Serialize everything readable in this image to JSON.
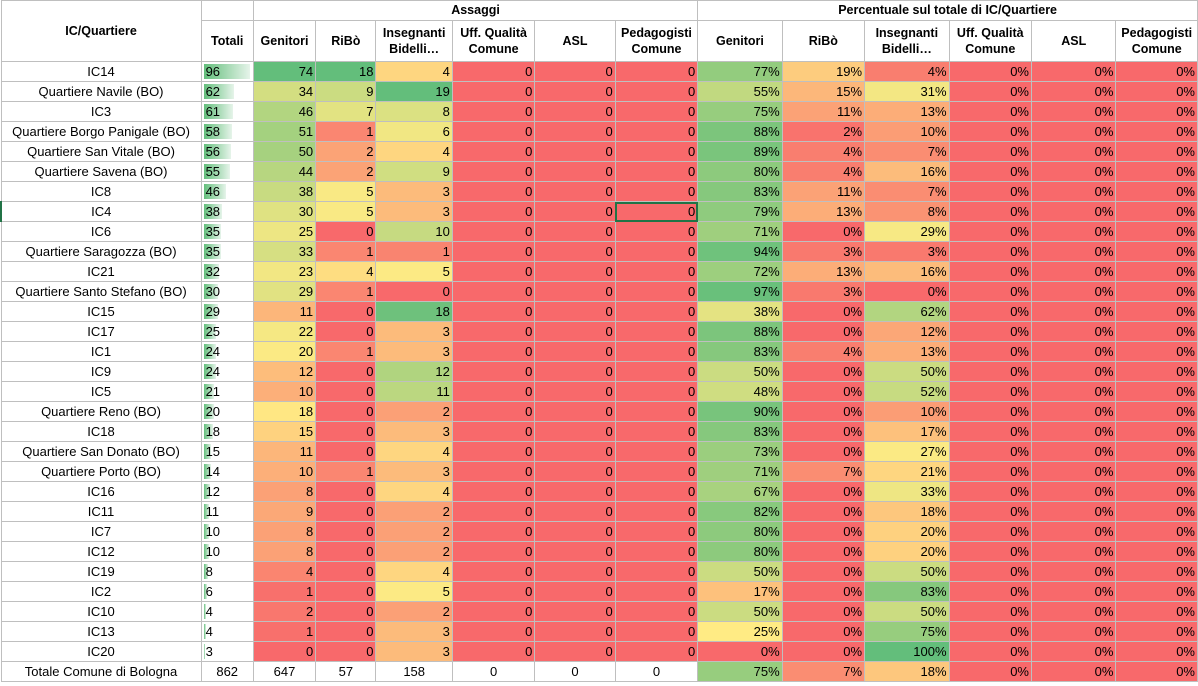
{
  "headers": {
    "col_name": "IC/Quartiere",
    "group_assaggi": "Assaggi",
    "group_percent": "Percentuale sul totale di IC/Quartiere",
    "totali": "Totali",
    "cols": [
      "Genitori",
      "RiBò",
      "Insegnanti Bidelli…",
      "Uff. Qualità Comune",
      "ASL",
      "Pedagogisti Comune"
    ]
  },
  "rows": [
    {
      "name": "IC14",
      "tot": 96,
      "a": [
        "74",
        "18",
        "4",
        "0",
        "0",
        "0"
      ],
      "p": [
        "77%",
        "19%",
        "4%",
        "0%",
        "0%",
        "0%"
      ]
    },
    {
      "name": "Quartiere Navile (BO)",
      "tot": 62,
      "a": [
        "34",
        "9",
        "19",
        "0",
        "0",
        "0"
      ],
      "p": [
        "55%",
        "15%",
        "31%",
        "0%",
        "0%",
        "0%"
      ]
    },
    {
      "name": "IC3",
      "tot": 61,
      "a": [
        "46",
        "7",
        "8",
        "0",
        "0",
        "0"
      ],
      "p": [
        "75%",
        "11%",
        "13%",
        "0%",
        "0%",
        "0%"
      ]
    },
    {
      "name": "Quartiere Borgo Panigale (BO)",
      "tot": 58,
      "a": [
        "51",
        "1",
        "6",
        "0",
        "0",
        "0"
      ],
      "p": [
        "88%",
        "2%",
        "10%",
        "0%",
        "0%",
        "0%"
      ]
    },
    {
      "name": "Quartiere San Vitale (BO)",
      "tot": 56,
      "a": [
        "50",
        "2",
        "4",
        "0",
        "0",
        "0"
      ],
      "p": [
        "89%",
        "4%",
        "7%",
        "0%",
        "0%",
        "0%"
      ]
    },
    {
      "name": "Quartiere Savena (BO)",
      "tot": 55,
      "a": [
        "44",
        "2",
        "9",
        "0",
        "0",
        "0"
      ],
      "p": [
        "80%",
        "4%",
        "16%",
        "0%",
        "0%",
        "0%"
      ]
    },
    {
      "name": "IC8",
      "tot": 46,
      "a": [
        "38",
        "5",
        "3",
        "0",
        "0",
        "0"
      ],
      "p": [
        "83%",
        "11%",
        "7%",
        "0%",
        "0%",
        "0%"
      ]
    },
    {
      "name": "IC4",
      "tot": 38,
      "a": [
        "30",
        "5",
        "3",
        "0",
        "0",
        "0"
      ],
      "p": [
        "79%",
        "13%",
        "8%",
        "0%",
        "0%",
        "0%"
      ]
    },
    {
      "name": "IC6",
      "tot": 35,
      "a": [
        "25",
        "0",
        "10",
        "0",
        "0",
        "0"
      ],
      "p": [
        "71%",
        "0%",
        "29%",
        "0%",
        "0%",
        "0%"
      ]
    },
    {
      "name": "Quartiere Saragozza (BO)",
      "tot": 35,
      "a": [
        "33",
        "1",
        "1",
        "0",
        "0",
        "0"
      ],
      "p": [
        "94%",
        "3%",
        "3%",
        "0%",
        "0%",
        "0%"
      ]
    },
    {
      "name": "IC21",
      "tot": 32,
      "a": [
        "23",
        "4",
        "5",
        "0",
        "0",
        "0"
      ],
      "p": [
        "72%",
        "13%",
        "16%",
        "0%",
        "0%",
        "0%"
      ]
    },
    {
      "name": "Quartiere Santo Stefano (BO)",
      "tot": 30,
      "a": [
        "29",
        "1",
        "0",
        "0",
        "0",
        "0"
      ],
      "p": [
        "97%",
        "3%",
        "0%",
        "0%",
        "0%",
        "0%"
      ]
    },
    {
      "name": "IC15",
      "tot": 29,
      "a": [
        "11",
        "0",
        "18",
        "0",
        "0",
        "0"
      ],
      "p": [
        "38%",
        "0%",
        "62%",
        "0%",
        "0%",
        "0%"
      ]
    },
    {
      "name": "IC17",
      "tot": 25,
      "a": [
        "22",
        "0",
        "3",
        "0",
        "0",
        "0"
      ],
      "p": [
        "88%",
        "0%",
        "12%",
        "0%",
        "0%",
        "0%"
      ]
    },
    {
      "name": "IC1",
      "tot": 24,
      "a": [
        "20",
        "1",
        "3",
        "0",
        "0",
        "0"
      ],
      "p": [
        "83%",
        "4%",
        "13%",
        "0%",
        "0%",
        "0%"
      ]
    },
    {
      "name": "IC9",
      "tot": 24,
      "a": [
        "12",
        "0",
        "12",
        "0",
        "0",
        "0"
      ],
      "p": [
        "50%",
        "0%",
        "50%",
        "0%",
        "0%",
        "0%"
      ]
    },
    {
      "name": "IC5",
      "tot": 21,
      "a": [
        "10",
        "0",
        "11",
        "0",
        "0",
        "0"
      ],
      "p": [
        "48%",
        "0%",
        "52%",
        "0%",
        "0%",
        "0%"
      ]
    },
    {
      "name": "Quartiere Reno (BO)",
      "tot": 20,
      "a": [
        "18",
        "0",
        "2",
        "0",
        "0",
        "0"
      ],
      "p": [
        "90%",
        "0%",
        "10%",
        "0%",
        "0%",
        "0%"
      ]
    },
    {
      "name": "IC18",
      "tot": 18,
      "a": [
        "15",
        "0",
        "3",
        "0",
        "0",
        "0"
      ],
      "p": [
        "83%",
        "0%",
        "17%",
        "0%",
        "0%",
        "0%"
      ]
    },
    {
      "name": "Quartiere San Donato (BO)",
      "tot": 15,
      "a": [
        "11",
        "0",
        "4",
        "0",
        "0",
        "0"
      ],
      "p": [
        "73%",
        "0%",
        "27%",
        "0%",
        "0%",
        "0%"
      ]
    },
    {
      "name": "Quartiere Porto (BO)",
      "tot": 14,
      "a": [
        "10",
        "1",
        "3",
        "0",
        "0",
        "0"
      ],
      "p": [
        "71%",
        "7%",
        "21%",
        "0%",
        "0%",
        "0%"
      ]
    },
    {
      "name": "IC16",
      "tot": 12,
      "a": [
        "8",
        "0",
        "4",
        "0",
        "0",
        "0"
      ],
      "p": [
        "67%",
        "0%",
        "33%",
        "0%",
        "0%",
        "0%"
      ]
    },
    {
      "name": "IC11",
      "tot": 11,
      "a": [
        "9",
        "0",
        "2",
        "0",
        "0",
        "0"
      ],
      "p": [
        "82%",
        "0%",
        "18%",
        "0%",
        "0%",
        "0%"
      ]
    },
    {
      "name": "IC7",
      "tot": 10,
      "a": [
        "8",
        "0",
        "2",
        "0",
        "0",
        "0"
      ],
      "p": [
        "80%",
        "0%",
        "20%",
        "0%",
        "0%",
        "0%"
      ]
    },
    {
      "name": "IC12",
      "tot": 10,
      "a": [
        "8",
        "0",
        "2",
        "0",
        "0",
        "0"
      ],
      "p": [
        "80%",
        "0%",
        "20%",
        "0%",
        "0%",
        "0%"
      ]
    },
    {
      "name": "IC19",
      "tot": 8,
      "a": [
        "4",
        "0",
        "4",
        "0",
        "0",
        "0"
      ],
      "p": [
        "50%",
        "0%",
        "50%",
        "0%",
        "0%",
        "0%"
      ]
    },
    {
      "name": "IC2",
      "tot": 6,
      "a": [
        "1",
        "0",
        "5",
        "0",
        "0",
        "0"
      ],
      "p": [
        "17%",
        "0%",
        "83%",
        "0%",
        "0%",
        "0%"
      ]
    },
    {
      "name": "IC10",
      "tot": 4,
      "a": [
        "2",
        "0",
        "2",
        "0",
        "0",
        "0"
      ],
      "p": [
        "50%",
        "0%",
        "50%",
        "0%",
        "0%",
        "0%"
      ]
    },
    {
      "name": "IC13",
      "tot": 4,
      "a": [
        "1",
        "0",
        "3",
        "0",
        "0",
        "0"
      ],
      "p": [
        "25%",
        "0%",
        "75%",
        "0%",
        "0%",
        "0%"
      ]
    },
    {
      "name": "IC20",
      "tot": 3,
      "a": [
        "0",
        "0",
        "3",
        "0",
        "0",
        "0"
      ],
      "p": [
        "0%",
        "0%",
        "100%",
        "0%",
        "0%",
        "0%"
      ]
    }
  ],
  "total": {
    "name": "Totale Comune di Bologna",
    "tot": "862",
    "a": [
      "647",
      "57",
      "158",
      "0",
      "0",
      "0"
    ],
    "p": [
      "75%",
      "7%",
      "18%",
      "0%",
      "0%",
      "0%"
    ]
  },
  "colors": {
    "red": "#f8696b",
    "yellow": "#ffeb84",
    "green": "#63be7b",
    "databar": "#63be7b"
  }
}
